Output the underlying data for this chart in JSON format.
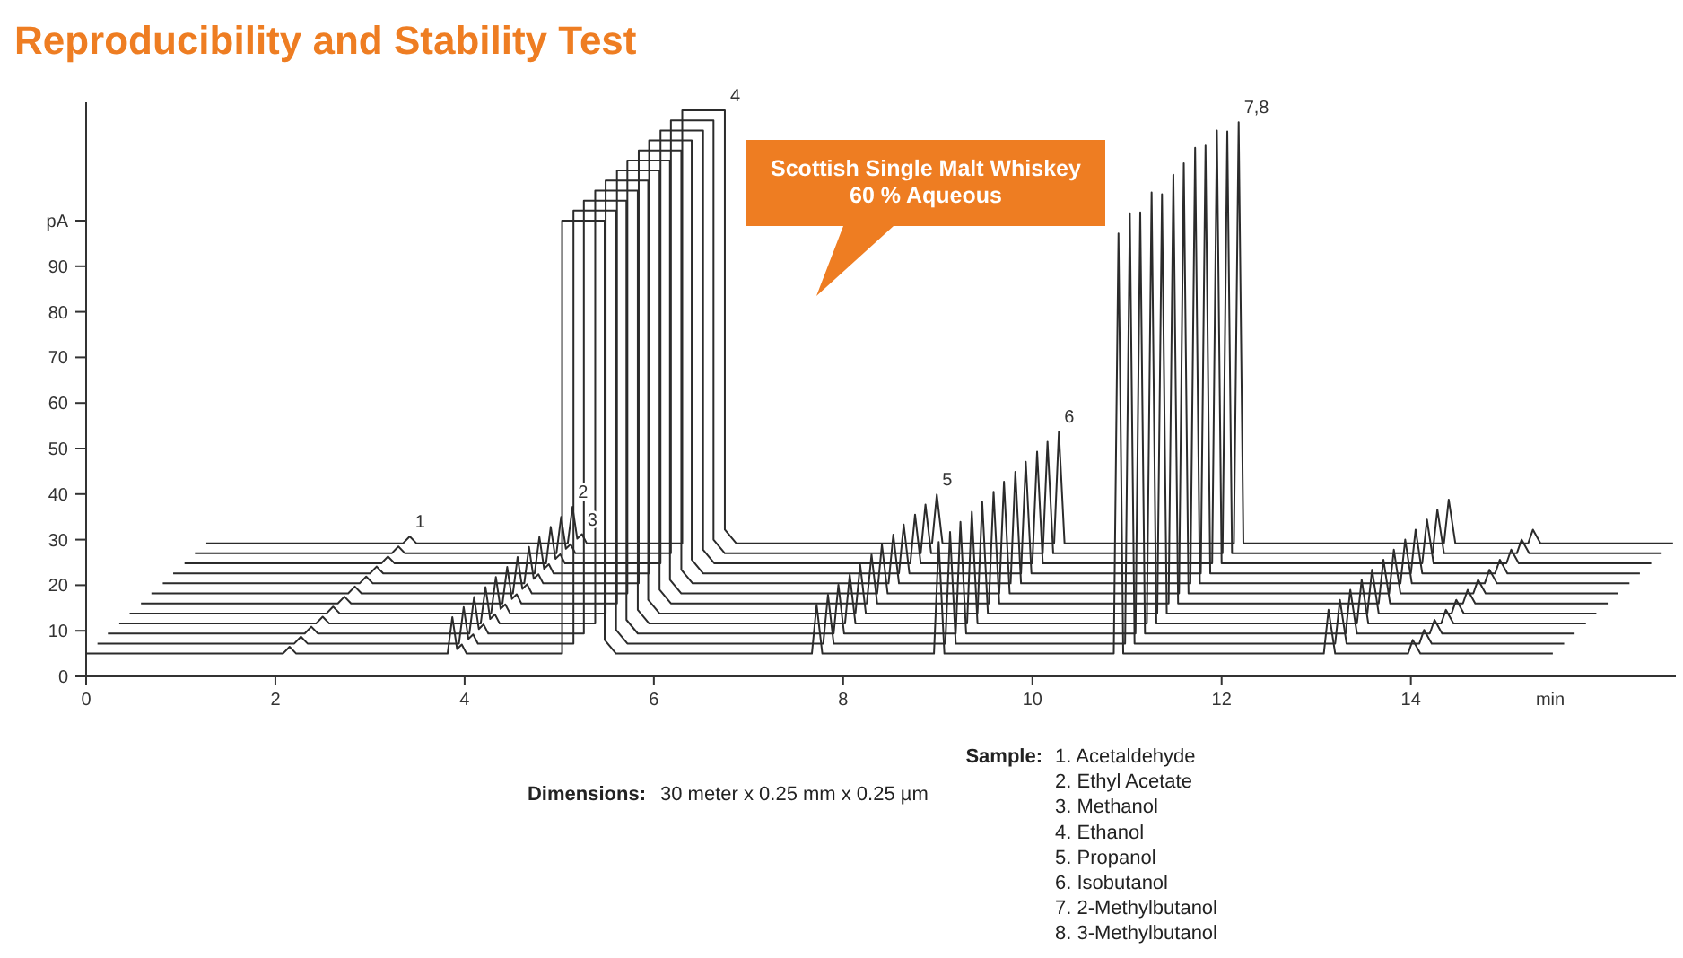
{
  "chart_data": {
    "type": "line",
    "title": "Reproducibility and Stability Test",
    "xlabel": "min",
    "ylabel": "pA",
    "xlim": [
      0,
      16.8
    ],
    "ylim": [
      0,
      126
    ],
    "xticks": [
      0,
      2,
      4,
      6,
      8,
      10,
      12,
      14
    ],
    "yticks": [
      0,
      10,
      20,
      30,
      40,
      50,
      60,
      70,
      80,
      90,
      {
        "value": 100,
        "label": null
      }
    ],
    "grid": false,
    "marker": "none",
    "line_style": "solid",
    "series": [
      {
        "color": "#2b2b2b",
        "x": [
          1.27,
          3.35,
          3.42,
          3.49,
          5.09,
          5.14,
          5.19,
          5.24,
          5.29,
          6.3,
          6.3,
          6.75,
          6.75,
          6.87,
          8.94,
          8.99,
          9.05,
          10.23,
          10.28,
          10.34,
          12.13,
          12.18,
          12.23,
          14.35,
          14.4,
          14.47,
          15.24,
          15.29,
          15.37,
          16.77
        ],
        "values": [
          29.2,
          29.2,
          30.7,
          29.2,
          29.2,
          37.2,
          30.2,
          31.2,
          29.2,
          29.2,
          124.2,
          124.2,
          32.2,
          29.2,
          29.2,
          39.9,
          29.2,
          29.2,
          53.7,
          29.2,
          29.2,
          121.6,
          29.2,
          29.2,
          38.8,
          29.2,
          29.2,
          32.2,
          29.2,
          29.2
        ]
      },
      {
        "color": "#2b2b2b",
        "x": [
          1.15,
          3.23,
          3.3,
          3.37,
          4.97,
          5.02,
          5.07,
          5.12,
          5.17,
          6.18,
          6.18,
          6.63,
          6.63,
          6.75,
          8.82,
          8.87,
          8.93,
          10.11,
          10.16,
          10.22,
          12.01,
          12.06,
          12.11,
          14.23,
          14.28,
          14.35,
          15.12,
          15.17,
          15.25,
          16.65
        ],
        "values": [
          27,
          27,
          28.5,
          27,
          27,
          35,
          28,
          29,
          27,
          27,
          122,
          122,
          30,
          27,
          27,
          37.7,
          27,
          27,
          51.5,
          27,
          27,
          119.6,
          27,
          27,
          36.6,
          27,
          27,
          30,
          27,
          27
        ]
      },
      {
        "color": "#2b2b2b",
        "x": [
          1.04,
          3.12,
          3.19,
          3.26,
          4.86,
          4.91,
          4.96,
          5.01,
          5.06,
          6.07,
          6.07,
          6.52,
          6.52,
          6.64,
          8.71,
          8.76,
          8.82,
          10,
          10.05,
          10.11,
          11.9,
          11.95,
          12,
          14.12,
          14.17,
          14.24,
          15.01,
          15.06,
          15.14,
          16.54
        ],
        "values": [
          24.8,
          24.8,
          26.3,
          24.8,
          24.8,
          32.8,
          25.8,
          26.8,
          24.8,
          24.8,
          119.8,
          119.8,
          27.8,
          24.8,
          24.8,
          35.5,
          24.8,
          24.8,
          49.3,
          24.8,
          24.8,
          119.8,
          24.8,
          24.8,
          34.4,
          24.8,
          24.8,
          27.8,
          24.8,
          24.8
        ]
      },
      {
        "color": "#2b2b2b",
        "x": [
          0.92,
          3,
          3.07,
          3.14,
          4.74,
          4.79,
          4.84,
          4.89,
          4.94,
          5.95,
          5.95,
          6.4,
          6.4,
          6.52,
          8.59,
          8.64,
          8.7,
          9.88,
          9.93,
          9.99,
          11.78,
          11.83,
          11.88,
          14,
          14.05,
          14.12,
          14.89,
          14.94,
          15.02,
          16.42
        ],
        "values": [
          22.6,
          22.6,
          24.1,
          22.6,
          22.6,
          30.6,
          23.6,
          24.6,
          22.6,
          22.6,
          117.6,
          117.6,
          25.6,
          22.6,
          22.6,
          33.3,
          22.6,
          22.6,
          47.1,
          22.6,
          22.6,
          116.5,
          22.6,
          22.6,
          32.2,
          22.6,
          22.6,
          25.6,
          22.6,
          22.6
        ]
      },
      {
        "color": "#2b2b2b",
        "x": [
          0.81,
          2.89,
          2.96,
          3.03,
          4.63,
          4.68,
          4.73,
          4.78,
          4.83,
          5.84,
          5.84,
          6.29,
          6.29,
          6.41,
          8.48,
          8.53,
          8.59,
          9.77,
          9.82,
          9.88,
          11.67,
          11.72,
          11.77,
          13.89,
          13.94,
          14.01,
          14.78,
          14.83,
          14.91,
          16.31
        ],
        "values": [
          20.4,
          20.4,
          21.9,
          20.4,
          20.4,
          28.4,
          21.4,
          22.4,
          20.4,
          20.4,
          115.4,
          115.4,
          23.4,
          20.4,
          20.4,
          31.1,
          20.4,
          20.4,
          44.9,
          20.4,
          20.4,
          116,
          20.4,
          20.4,
          30,
          20.4,
          20.4,
          23.4,
          20.4,
          20.4
        ]
      },
      {
        "color": "#2b2b2b",
        "x": [
          0.69,
          2.77,
          2.84,
          2.91,
          4.51,
          4.56,
          4.61,
          4.66,
          4.71,
          5.72,
          5.72,
          6.17,
          6.17,
          6.29,
          8.36,
          8.41,
          8.47,
          9.65,
          9.7,
          9.76,
          11.55,
          11.6,
          11.65,
          13.77,
          13.82,
          13.89,
          14.66,
          14.71,
          14.79,
          16.19
        ],
        "values": [
          18.2,
          18.2,
          19.7,
          18.2,
          18.2,
          26.2,
          19.2,
          20.2,
          18.2,
          18.2,
          113.2,
          113.2,
          21.2,
          18.2,
          18.2,
          28.9,
          18.2,
          18.2,
          42.7,
          18.2,
          18.2,
          112.6,
          18.2,
          18.2,
          27.8,
          18.2,
          18.2,
          21.2,
          18.2,
          18.2
        ]
      },
      {
        "color": "#2b2b2b",
        "x": [
          0.58,
          2.66,
          2.73,
          2.8,
          4.4,
          4.45,
          4.5,
          4.55,
          4.6,
          5.61,
          5.61,
          6.06,
          6.06,
          6.18,
          8.25,
          8.3,
          8.36,
          9.54,
          9.59,
          9.65,
          11.44,
          11.49,
          11.54,
          13.66,
          13.71,
          13.78,
          14.55,
          14.6,
          14.68,
          16.08
        ],
        "values": [
          16,
          16,
          17.5,
          16,
          16,
          24,
          17,
          18,
          16,
          16,
          111,
          111,
          19,
          16,
          16,
          26.7,
          16,
          16,
          40.5,
          16,
          16,
          110.1,
          16,
          16,
          25.6,
          16,
          16,
          19,
          16,
          16
        ]
      },
      {
        "color": "#2b2b2b",
        "x": [
          0.46,
          2.54,
          2.61,
          2.68,
          4.28,
          4.33,
          4.38,
          4.43,
          4.48,
          5.49,
          5.49,
          5.94,
          5.94,
          6.06,
          8.13,
          8.18,
          8.24,
          9.42,
          9.47,
          9.53,
          11.32,
          11.37,
          11.42,
          13.54,
          13.59,
          13.66,
          14.43,
          14.48,
          14.56,
          15.96
        ],
        "values": [
          13.8,
          13.8,
          15.3,
          13.8,
          13.8,
          21.8,
          14.8,
          15.8,
          13.8,
          13.8,
          108.8,
          108.8,
          16.8,
          13.8,
          13.8,
          24.5,
          13.8,
          13.8,
          38.3,
          13.8,
          13.8,
          105.8,
          13.8,
          13.8,
          23.4,
          13.8,
          13.8,
          16.8,
          13.8,
          13.8
        ]
      },
      {
        "color": "#2b2b2b",
        "x": [
          0.35,
          2.43,
          2.5,
          2.57,
          4.17,
          4.22,
          4.27,
          4.32,
          4.37,
          5.38,
          5.38,
          5.83,
          5.83,
          5.95,
          8.02,
          8.07,
          8.13,
          9.31,
          9.36,
          9.42,
          11.21,
          11.26,
          11.31,
          13.43,
          13.48,
          13.55,
          14.32,
          14.37,
          14.45,
          15.85
        ],
        "values": [
          11.6,
          11.6,
          13.1,
          11.6,
          11.6,
          19.6,
          12.6,
          13.6,
          11.6,
          11.6,
          106.6,
          106.6,
          14.6,
          11.6,
          11.6,
          22.3,
          11.6,
          11.6,
          36.1,
          11.6,
          11.6,
          106.2,
          11.6,
          11.6,
          21.2,
          11.6,
          11.6,
          14.6,
          11.6,
          11.6
        ]
      },
      {
        "color": "#2b2b2b",
        "x": [
          0.23,
          2.31,
          2.38,
          2.45,
          4.05,
          4.1,
          4.15,
          4.2,
          4.25,
          5.26,
          5.26,
          5.71,
          5.71,
          5.83,
          7.9,
          7.95,
          8.01,
          9.19,
          9.24,
          9.3,
          11.09,
          11.14,
          11.19,
          13.31,
          13.36,
          13.43,
          14.2,
          14.25,
          14.33,
          15.73
        ],
        "values": [
          9.4,
          9.4,
          10.9,
          9.4,
          9.4,
          17.4,
          10.4,
          11.4,
          9.4,
          9.4,
          104.4,
          104.4,
          12.4,
          9.4,
          9.4,
          20.1,
          9.4,
          9.4,
          33.9,
          9.4,
          9.4,
          101.8,
          9.4,
          9.4,
          19,
          9.4,
          9.4,
          12.4,
          9.4,
          9.4
        ]
      },
      {
        "color": "#2b2b2b",
        "x": [
          0.12,
          2.2,
          2.27,
          2.34,
          3.94,
          3.99,
          4.04,
          4.09,
          4.14,
          5.15,
          5.15,
          5.6,
          5.6,
          5.72,
          7.79,
          7.84,
          7.9,
          9.08,
          9.13,
          9.19,
          10.98,
          11.03,
          11.08,
          13.2,
          13.25,
          13.32,
          14.09,
          14.14,
          14.22,
          15.62
        ],
        "values": [
          7.2,
          7.2,
          8.7,
          7.2,
          7.2,
          15.2,
          8.2,
          9.2,
          7.2,
          7.2,
          102.2,
          102.2,
          10.2,
          7.2,
          7.2,
          17.9,
          7.2,
          7.2,
          31.7,
          7.2,
          7.2,
          101.6,
          7.2,
          7.2,
          16.8,
          7.2,
          7.2,
          10.2,
          7.2,
          7.2
        ]
      },
      {
        "color": "#2b2b2b",
        "x": [
          0,
          2.08,
          2.15,
          2.22,
          3.82,
          3.87,
          3.92,
          3.97,
          4.02,
          5.03,
          5.03,
          5.48,
          5.48,
          5.6,
          7.67,
          7.72,
          7.78,
          8.96,
          9.01,
          9.07,
          10.86,
          10.91,
          10.96,
          13.08,
          13.13,
          13.2,
          13.97,
          14.02,
          14.1,
          15.5
        ],
        "values": [
          5,
          5,
          6.5,
          5,
          5,
          13,
          6,
          7,
          5,
          5,
          100,
          100,
          8,
          5,
          5,
          15.7,
          5,
          5,
          29.5,
          5,
          5,
          97.2,
          5,
          5,
          14.6,
          5,
          5,
          8,
          5,
          5
        ]
      }
    ],
    "annotations": [
      {
        "text": "1",
        "x": 3.42,
        "y": 30.7
      },
      {
        "text": "2",
        "x": 5.14,
        "y": 37.2
      },
      {
        "text": "3",
        "x": 5.24,
        "y": 31.2
      },
      {
        "text": "4",
        "x": 6.75,
        "y": 124.2
      },
      {
        "text": "5",
        "x": 8.99,
        "y": 39.9
      },
      {
        "text": "6",
        "x": 10.28,
        "y": 53.7
      },
      {
        "text": "7,8",
        "x": 12.18,
        "y": 121.6
      },
      "Scottish Single Malt Whiskey\n60 % Aqueous",
      "Dimensions: 30 meter x 0.25 mm x 0.25 µm",
      "Sample: 1. Acetaldehyde",
      "2. Ethyl Acetate",
      "3. Methanol",
      "4. Ethanol",
      "5. Propanol",
      "6. Isobutanol",
      "7. 2-Methylbutanol",
      "8. 3-Methylbutanol"
    ]
  }
}
